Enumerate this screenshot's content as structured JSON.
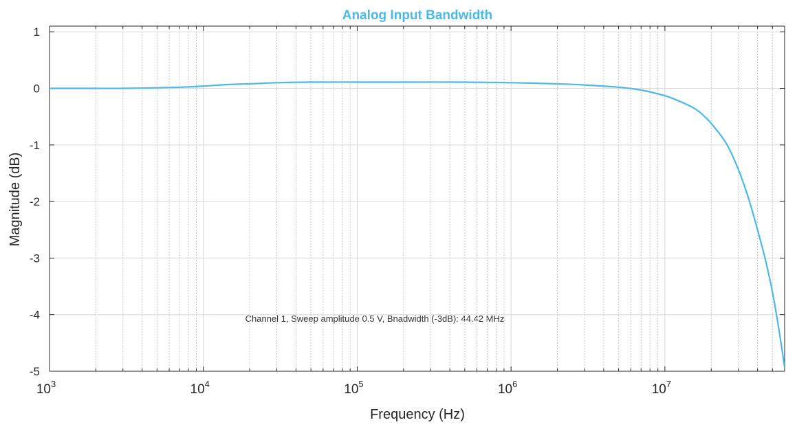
{
  "chart_data": {
    "type": "line",
    "title": "Analog Input Bandwidth",
    "xlabel": "Frequency (Hz)",
    "ylabel": "Magnitude (dB)",
    "x_scale": "log",
    "xlim": [
      1000,
      60000000
    ],
    "ylim": [
      -5,
      1.1
    ],
    "x_ticks": [
      {
        "value": 1000,
        "base": "10",
        "exp": "3"
      },
      {
        "value": 10000,
        "base": "10",
        "exp": "4"
      },
      {
        "value": 100000,
        "base": "10",
        "exp": "5"
      },
      {
        "value": 1000000,
        "base": "10",
        "exp": "6"
      },
      {
        "value": 10000000,
        "base": "10",
        "exp": "7"
      }
    ],
    "y_ticks": [
      {
        "value": 1,
        "label": "1"
      },
      {
        "value": 0,
        "label": "0"
      },
      {
        "value": -1,
        "label": "-1"
      },
      {
        "value": -2,
        "label": "-2"
      },
      {
        "value": -3,
        "label": "-3"
      },
      {
        "value": -4,
        "label": "-4"
      },
      {
        "value": -5,
        "label": "-5"
      }
    ],
    "grid": true,
    "annotation": "Channel 1, Sweep amplitude 0.5 V, Bnadwidth (-3dB): 44.42 MHz",
    "series": [
      {
        "color": "#4db8e8",
        "x": [
          1000,
          2000,
          3000,
          5000,
          7000,
          10000,
          15000,
          20000,
          30000,
          50000,
          100000,
          200000,
          500000,
          1000000,
          2000000,
          3000000,
          5000000,
          7000000,
          10000000,
          12000000,
          15000000,
          17000000,
          20000000,
          25000000,
          30000000,
          35000000,
          40000000,
          45000000,
          50000000,
          55000000,
          60000000
        ],
        "y": [
          0.0,
          0.0,
          0.0,
          0.01,
          0.02,
          0.04,
          0.07,
          0.08,
          0.1,
          0.11,
          0.11,
          0.11,
          0.11,
          0.1,
          0.08,
          0.06,
          0.02,
          -0.03,
          -0.13,
          -0.21,
          -0.33,
          -0.43,
          -0.62,
          -0.97,
          -1.43,
          -1.95,
          -2.5,
          -3.03,
          -3.6,
          -4.25,
          -4.93
        ]
      }
    ]
  }
}
